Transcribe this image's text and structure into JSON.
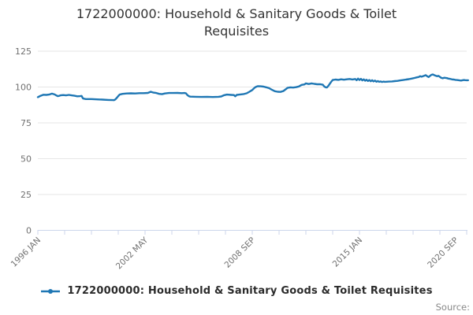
{
  "title": "1722000000: Household & Sanitary Goods & Toilet Requisites",
  "legend": {
    "label": "1722000000: Household & Sanitary Goods & Toilet Requisites"
  },
  "source_label": "Source:",
  "colors": {
    "series": "#1f77b4",
    "grid": "#e6e6e6",
    "axis": "#ccd6eb",
    "tick_label": "#707070",
    "title": "#333333",
    "legend_text": "#2b2b2b",
    "source": "#888888"
  },
  "chart_data": {
    "type": "line",
    "title": "1722000000: Household & Sanitary Goods & Toilet Requisites",
    "xlabel": "",
    "ylabel": "",
    "ylim": [
      0,
      125
    ],
    "y_ticks": [
      0,
      25,
      50,
      75,
      100,
      125
    ],
    "grid": "horizontal",
    "legend_position": "bottom",
    "x_axis": {
      "unit": "months since 1996 JAN",
      "max_month": 305,
      "minor_tick_months": [
        0,
        19,
        38,
        57,
        76,
        95,
        114,
        133,
        152,
        171,
        190,
        209,
        228,
        247,
        266,
        285,
        304
      ],
      "tick_label_months": [
        0,
        76,
        152,
        228,
        296
      ],
      "tick_labels": [
        "1996 JAN",
        "2002 MAY",
        "2008 SEP",
        "2015 JAN",
        "2020 SEP"
      ]
    },
    "series": [
      {
        "name": "1722000000: Household & Sanitary Goods & Toilet Requisites",
        "color": "#1f77b4",
        "points": [
          [
            0,
            92.9
          ],
          [
            1,
            93.4
          ],
          [
            2,
            93.9
          ],
          [
            4,
            94.6
          ],
          [
            6,
            94.5
          ],
          [
            8,
            94.7
          ],
          [
            10,
            95.4
          ],
          [
            12,
            94.8
          ],
          [
            13,
            94.2
          ],
          [
            14,
            93.7
          ],
          [
            15,
            93.8
          ],
          [
            16,
            94.2
          ],
          [
            18,
            94.4
          ],
          [
            20,
            94.2
          ],
          [
            22,
            94.5
          ],
          [
            24,
            94.2
          ],
          [
            26,
            93.9
          ],
          [
            28,
            93.5
          ],
          [
            30,
            93.6
          ],
          [
            31,
            93.8
          ],
          [
            32,
            92.0
          ],
          [
            34,
            91.6
          ],
          [
            38,
            91.6
          ],
          [
            42,
            91.4
          ],
          [
            46,
            91.2
          ],
          [
            50,
            91.0
          ],
          [
            53,
            90.9
          ],
          [
            54,
            90.8
          ],
          [
            55,
            91.4
          ],
          [
            56,
            92.5
          ],
          [
            57,
            93.7
          ],
          [
            58,
            94.7
          ],
          [
            60,
            95.2
          ],
          [
            63,
            95.5
          ],
          [
            66,
            95.6
          ],
          [
            69,
            95.5
          ],
          [
            72,
            95.7
          ],
          [
            75,
            95.7
          ],
          [
            78,
            95.9
          ],
          [
            80,
            96.7
          ],
          [
            82,
            96.1
          ],
          [
            84,
            95.8
          ],
          [
            86,
            95.2
          ],
          [
            88,
            95.0
          ],
          [
            90,
            95.5
          ],
          [
            93,
            95.8
          ],
          [
            96,
            95.8
          ],
          [
            99,
            95.9
          ],
          [
            102,
            95.7
          ],
          [
            104,
            95.8
          ],
          [
            105,
            95.6
          ],
          [
            106,
            94.4
          ],
          [
            107,
            93.6
          ],
          [
            108,
            93.3
          ],
          [
            112,
            93.2
          ],
          [
            116,
            93.1
          ],
          [
            120,
            93.2
          ],
          [
            124,
            93.0
          ],
          [
            128,
            93.2
          ],
          [
            130,
            93.4
          ],
          [
            132,
            94.3
          ],
          [
            134,
            94.7
          ],
          [
            137,
            94.5
          ],
          [
            139,
            94.4
          ],
          [
            140,
            93.5
          ],
          [
            141,
            94.5
          ],
          [
            143,
            94.7
          ],
          [
            146,
            95.1
          ],
          [
            148,
            95.6
          ],
          [
            150,
            96.7
          ],
          [
            152,
            97.9
          ],
          [
            153,
            98.9
          ],
          [
            154,
            99.8
          ],
          [
            155,
            100.3
          ],
          [
            156,
            100.6
          ],
          [
            158,
            100.5
          ],
          [
            160,
            100.3
          ],
          [
            162,
            99.8
          ],
          [
            164,
            99.2
          ],
          [
            166,
            98.0
          ],
          [
            168,
            97.1
          ],
          [
            170,
            96.7
          ],
          [
            172,
            96.6
          ],
          [
            174,
            97.2
          ],
          [
            176,
            98.6
          ],
          [
            177,
            99.4
          ],
          [
            179,
            99.8
          ],
          [
            181,
            99.6
          ],
          [
            183,
            99.9
          ],
          [
            185,
            100.4
          ],
          [
            187,
            101.5
          ],
          [
            189,
            101.8
          ],
          [
            190,
            102.5
          ],
          [
            192,
            102.1
          ],
          [
            194,
            102.5
          ],
          [
            196,
            102.2
          ],
          [
            198,
            101.9
          ],
          [
            200,
            102.0
          ],
          [
            202,
            101.6
          ],
          [
            203,
            100.4
          ],
          [
            204,
            99.8
          ],
          [
            205,
            99.7
          ],
          [
            206,
            100.9
          ],
          [
            207,
            102.3
          ],
          [
            208,
            103.7
          ],
          [
            209,
            104.9
          ],
          [
            211,
            105.2
          ],
          [
            213,
            105.0
          ],
          [
            215,
            105.4
          ],
          [
            217,
            105.1
          ],
          [
            219,
            105.4
          ],
          [
            221,
            105.6
          ],
          [
            223,
            105.3
          ],
          [
            225,
            105.6
          ],
          [
            226,
            104.8
          ],
          [
            227,
            105.9
          ],
          [
            228,
            104.9
          ],
          [
            229,
            105.7
          ],
          [
            230,
            104.6
          ],
          [
            231,
            105.4
          ],
          [
            232,
            104.4
          ],
          [
            233,
            105.1
          ],
          [
            234,
            104.2
          ],
          [
            235,
            104.9
          ],
          [
            236,
            104.0
          ],
          [
            237,
            104.7
          ],
          [
            238,
            103.9
          ],
          [
            239,
            104.5
          ],
          [
            240,
            103.7
          ],
          [
            241,
            104.2
          ],
          [
            242,
            103.6
          ],
          [
            243,
            103.9
          ],
          [
            244,
            103.5
          ],
          [
            245,
            103.8
          ],
          [
            246,
            103.6
          ],
          [
            247,
            103.7
          ],
          [
            249,
            103.8
          ],
          [
            251,
            103.9
          ],
          [
            253,
            104.1
          ],
          [
            255,
            104.3
          ],
          [
            257,
            104.6
          ],
          [
            259,
            104.9
          ],
          [
            261,
            105.2
          ],
          [
            263,
            105.5
          ],
          [
            265,
            105.9
          ],
          [
            267,
            106.3
          ],
          [
            269,
            106.8
          ],
          [
            270,
            107.0
          ],
          [
            271,
            107.6
          ],
          [
            272,
            107.2
          ],
          [
            273,
            107.5
          ],
          [
            274,
            107.9
          ],
          [
            275,
            108.3
          ],
          [
            276,
            107.5
          ],
          [
            277,
            106.9
          ],
          [
            278,
            107.8
          ],
          [
            279,
            108.5
          ],
          [
            280,
            108.8
          ],
          [
            281,
            108.3
          ],
          [
            282,
            107.9
          ],
          [
            283,
            107.5
          ],
          [
            284,
            107.8
          ],
          [
            285,
            107.1
          ],
          [
            286,
            106.4
          ],
          [
            287,
            106.1
          ],
          [
            288,
            106.5
          ],
          [
            289,
            106.4
          ],
          [
            290,
            106.2
          ],
          [
            291,
            105.9
          ],
          [
            292,
            105.7
          ],
          [
            293,
            105.5
          ],
          [
            294,
            105.3
          ],
          [
            295,
            105.2
          ],
          [
            296,
            105.0
          ],
          [
            297,
            104.9
          ],
          [
            298,
            104.8
          ],
          [
            299,
            104.6
          ],
          [
            300,
            104.5
          ],
          [
            301,
            104.7
          ],
          [
            302,
            104.9
          ],
          [
            303,
            104.8
          ],
          [
            304,
            104.7
          ],
          [
            305,
            104.7
          ]
        ]
      }
    ]
  }
}
